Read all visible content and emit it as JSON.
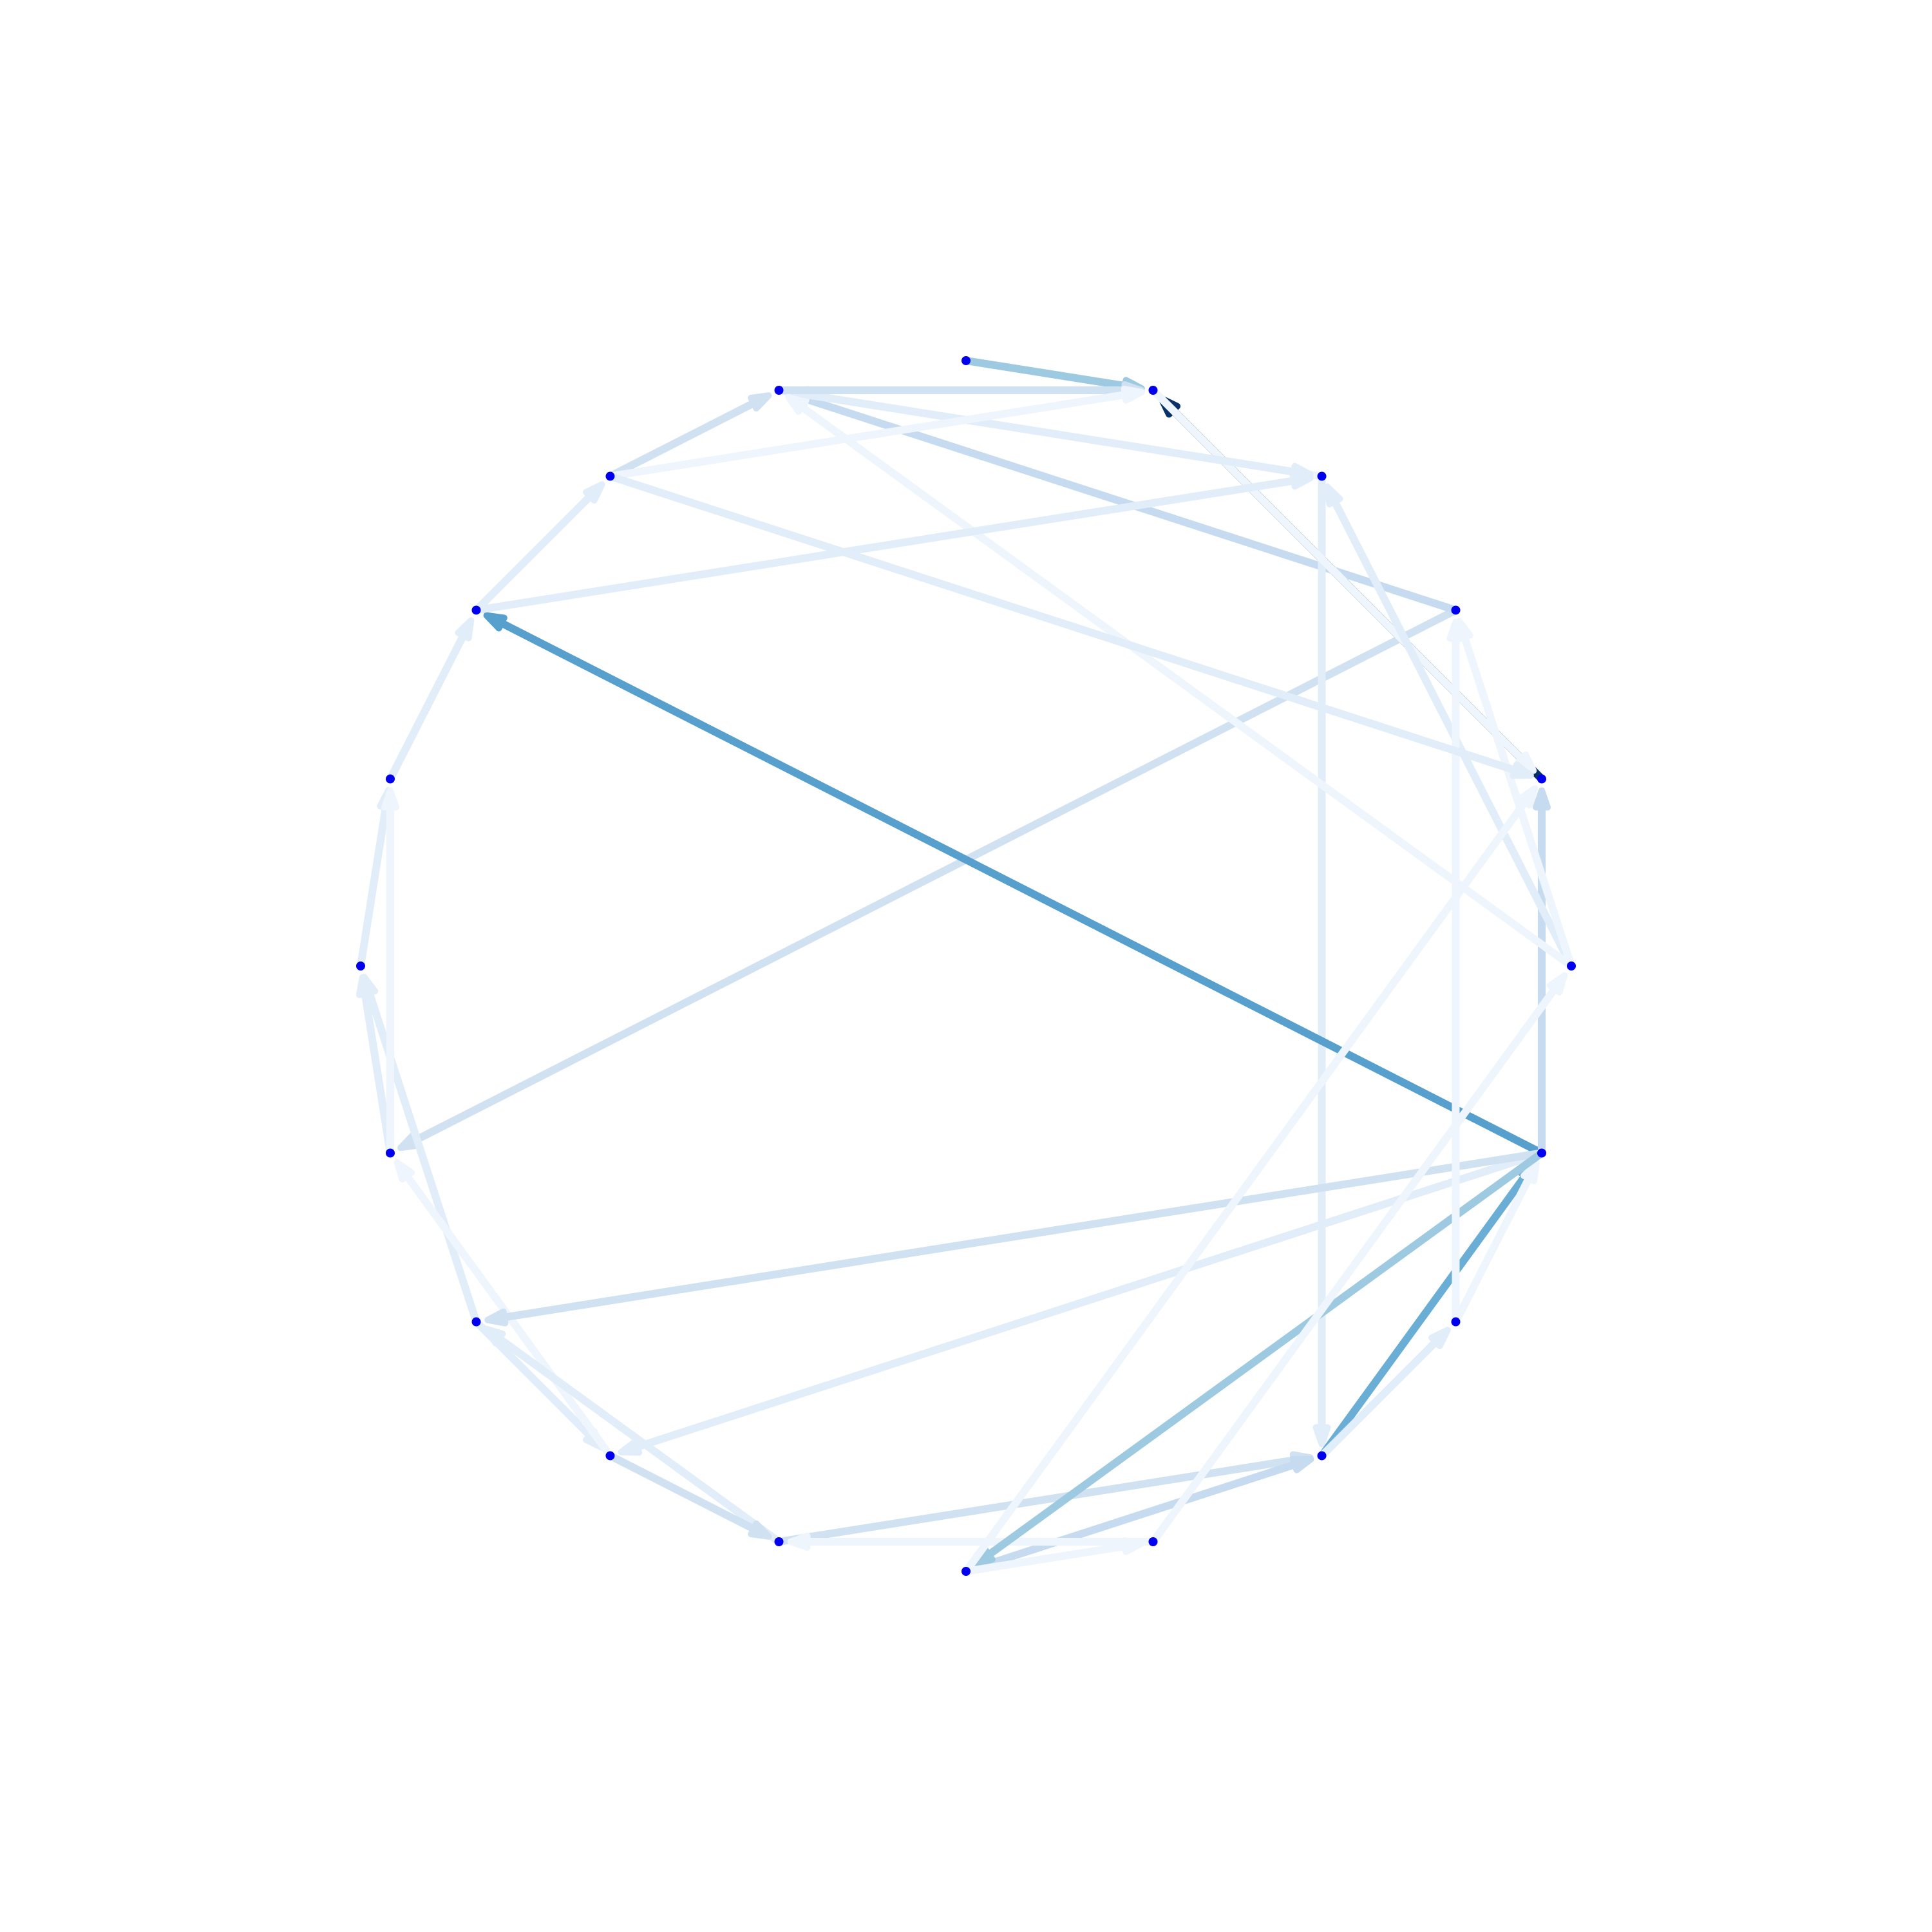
{
  "graph": {
    "layout": "circular",
    "directed": true,
    "node_count": 20,
    "node_color": "#0000ee",
    "edge_colormap": "Blues",
    "palette": [
      "#eff5fc",
      "#e1edf8",
      "#d0e1f2",
      "#c6dbef",
      "#9ecae1",
      "#6aaed6",
      "#57a0ce",
      "#08306b"
    ],
    "nodes": [
      0,
      1,
      2,
      3,
      4,
      5,
      6,
      7,
      8,
      9,
      10,
      11,
      12,
      13,
      14,
      15,
      16,
      17,
      18,
      19
    ],
    "edges": [
      {
        "from": 0,
        "to": 3,
        "color": "#08306b"
      },
      {
        "from": 0,
        "to": 3,
        "color": "#08306b"
      },
      {
        "from": 1,
        "to": 10,
        "color": "#d0e1f2"
      },
      {
        "from": 1,
        "to": 5,
        "color": "#c6dbef"
      },
      {
        "from": 2,
        "to": 16,
        "color": "#e1edf8"
      },
      {
        "from": 2,
        "to": 5,
        "color": "#eff5fc"
      },
      {
        "from": 3,
        "to": 0,
        "color": "#eff5fc"
      },
      {
        "from": 4,
        "to": 3,
        "color": "#9ecae1"
      },
      {
        "from": 5,
        "to": 2,
        "color": "#e1edf8"
      },
      {
        "from": 5,
        "to": 3,
        "color": "#d0e1f2"
      },
      {
        "from": 6,
        "to": 5,
        "color": "#d0e1f2"
      },
      {
        "from": 7,
        "to": 6,
        "color": "#e1edf8"
      },
      {
        "from": 8,
        "to": 7,
        "color": "#e1edf8"
      },
      {
        "from": 9,
        "to": 8,
        "color": "#e1edf8"
      },
      {
        "from": 10,
        "to": 9,
        "color": "#e1edf8"
      },
      {
        "from": 11,
        "to": 12,
        "color": "#e1edf8"
      },
      {
        "from": 11,
        "to": 9,
        "color": "#e1edf8"
      },
      {
        "from": 12,
        "to": 10,
        "color": "#eff5fc"
      },
      {
        "from": 13,
        "to": 11,
        "color": "#e1edf8"
      },
      {
        "from": 13,
        "to": 16,
        "color": "#d0e1f2"
      },
      {
        "from": 14,
        "to": 16,
        "color": "#c6dbef"
      },
      {
        "from": 15,
        "to": 13,
        "color": "#eff5fc"
      },
      {
        "from": 16,
        "to": 18,
        "color": "#6aaed6"
      },
      {
        "from": 16,
        "to": 17,
        "color": "#e1edf8"
      },
      {
        "from": 17,
        "to": 18,
        "color": "#eff5fc"
      },
      {
        "from": 18,
        "to": 7,
        "color": "#57a0ce"
      },
      {
        "from": 18,
        "to": 12,
        "color": "#e1edf8"
      },
      {
        "from": 18,
        "to": 11,
        "color": "#d0e1f2"
      },
      {
        "from": 18,
        "to": 0,
        "color": "#c6dbef"
      },
      {
        "from": 18,
        "to": 14,
        "color": "#9ecae1"
      },
      {
        "from": 19,
        "to": 2,
        "color": "#e1edf8"
      },
      {
        "from": 19,
        "to": 5,
        "color": "#eff5fc"
      },
      {
        "from": 19,
        "to": 1,
        "color": "#eff5fc"
      },
      {
        "from": 14,
        "to": 15,
        "color": "#eff5fc"
      },
      {
        "from": 17,
        "to": 1,
        "color": "#eff5fc"
      },
      {
        "from": 6,
        "to": 3,
        "color": "#eff5fc"
      },
      {
        "from": 15,
        "to": 19,
        "color": "#eff5fc"
      },
      {
        "from": 10,
        "to": 8,
        "color": "#eff5fc"
      },
      {
        "from": 14,
        "to": 0,
        "color": "#eff5fc"
      },
      {
        "from": 6,
        "to": 0,
        "color": "#e1edf8"
      },
      {
        "from": 7,
        "to": 2,
        "color": "#e1edf8"
      },
      {
        "from": 12,
        "to": 13,
        "color": "#d0e1f2"
      }
    ]
  }
}
